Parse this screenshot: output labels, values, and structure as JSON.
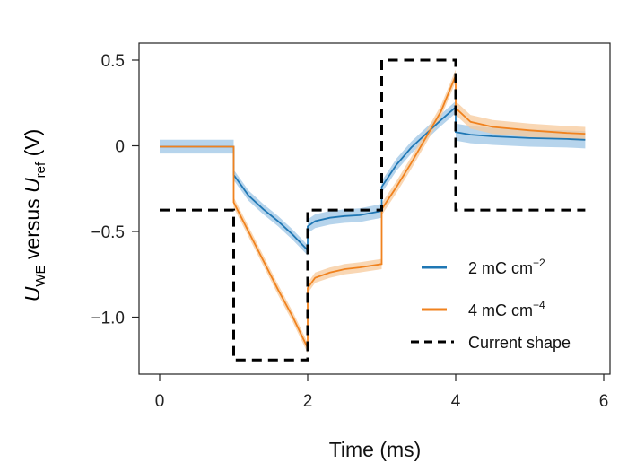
{
  "chart_data": {
    "type": "line",
    "title": "",
    "xlabel": "Time (ms)",
    "ylabel": {
      "u1": "U",
      "sub1": "WE",
      "mid": " versus ",
      "u2": "U",
      "sub2": "ref",
      "unit": " (V)"
    },
    "xlim": [
      0,
      6
    ],
    "ylim": [
      -1.33,
      0.6
    ],
    "xticks": [
      0,
      2,
      4,
      6
    ],
    "xtick_labels": [
      "0",
      "2",
      "4",
      "6"
    ],
    "yticks": [
      0.5,
      0,
      -0.5,
      -1.0
    ],
    "ytick_labels": [
      "0.5",
      "0",
      "−0.5",
      "−1.0"
    ],
    "legend_position": "lower-right",
    "series": [
      {
        "name": "2 mC cm",
        "name_sup": "−2",
        "color": "#1f77b4",
        "band_color": "#9ec6e6",
        "style": "solid",
        "segments": [
          {
            "x": [
              0.0,
              0.5,
              1.0
            ],
            "y": [
              -0.005,
              -0.005,
              -0.005
            ]
          },
          {
            "x": [
              1.0,
              1.1,
              1.2,
              1.4,
              1.6,
              1.8,
              2.0
            ],
            "y": [
              -0.17,
              -0.23,
              -0.29,
              -0.37,
              -0.44,
              -0.52,
              -0.61
            ]
          },
          {
            "x": [
              2.0,
              2.1,
              2.3,
              2.5,
              2.7,
              3.0
            ],
            "y": [
              -0.47,
              -0.44,
              -0.42,
              -0.41,
              -0.405,
              -0.38
            ]
          },
          {
            "x": [
              3.0,
              3.2,
              3.4,
              3.6,
              3.8,
              4.0
            ],
            "y": [
              -0.24,
              -0.11,
              -0.01,
              0.07,
              0.15,
              0.225
            ]
          },
          {
            "x": [
              4.0,
              4.2,
              4.5,
              5.0,
              5.5,
              5.75
            ],
            "y": [
              0.08,
              0.065,
              0.055,
              0.045,
              0.04,
              0.035
            ]
          }
        ],
        "band_width": [
          0.04,
          0.03,
          0.04,
          0.035,
          0.05
        ]
      },
      {
        "name": "4 mC cm",
        "name_sup": "−4",
        "color": "#f0821e",
        "band_color": "#f7c99b",
        "style": "solid",
        "segments": [
          {
            "x": [
              0.0,
              0.5,
              1.0
            ],
            "y": [
              -0.005,
              -0.005,
              -0.005
            ]
          },
          {
            "x": [
              1.0,
              1.2,
              1.4,
              1.6,
              1.8,
              2.0
            ],
            "y": [
              -0.33,
              -0.5,
              -0.67,
              -0.84,
              -1.0,
              -1.18
            ]
          },
          {
            "x": [
              2.0,
              2.1,
              2.3,
              2.5,
              2.7,
              3.0
            ],
            "y": [
              -0.83,
              -0.77,
              -0.74,
              -0.72,
              -0.71,
              -0.69
            ]
          },
          {
            "x": [
              3.0,
              3.2,
              3.4,
              3.6,
              3.8,
              4.0
            ],
            "y": [
              -0.37,
              -0.24,
              -0.1,
              0.05,
              0.2,
              0.41
            ]
          },
          {
            "x": [
              4.0,
              4.2,
              4.5,
              5.0,
              5.5,
              5.75
            ],
            "y": [
              0.22,
              0.14,
              0.11,
              0.09,
              0.075,
              0.07
            ]
          }
        ],
        "band_width": [
          0.0,
          0.03,
          0.03,
          0.035,
          0.04
        ]
      },
      {
        "name": "Current shape",
        "color": "#000000",
        "style": "dashed",
        "x": [
          0.0,
          1.0,
          1.0,
          2.0,
          2.0,
          3.0,
          3.0,
          4.0,
          4.0,
          5.75
        ],
        "y": [
          -0.375,
          -0.375,
          -1.25,
          -1.25,
          -0.375,
          -0.375,
          0.5,
          0.5,
          -0.375,
          -0.375
        ]
      }
    ]
  }
}
